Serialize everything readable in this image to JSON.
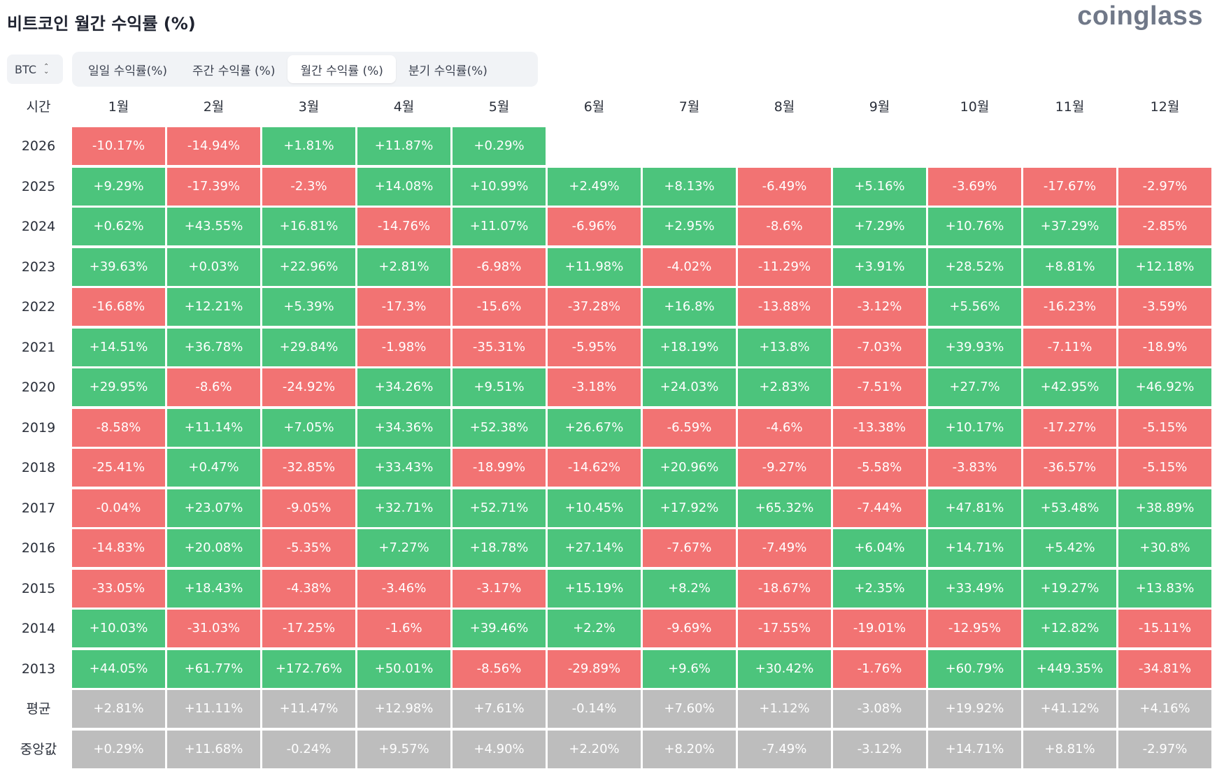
{
  "title": "비트코인 월간 수익률 (%)",
  "brand": "coinglass",
  "asset_select": {
    "value": "BTC",
    "icon": "chevron-updown-icon"
  },
  "tabs": [
    {
      "label": "일일 수익률(%)",
      "active": false
    },
    {
      "label": "주간 수익률 (%)",
      "active": false
    },
    {
      "label": "월간 수익률 (%)",
      "active": true
    },
    {
      "label": "분기 수익률(%)",
      "active": false
    }
  ],
  "table": {
    "corner_label": "시간",
    "months": [
      "1월",
      "2월",
      "3월",
      "4월",
      "5월",
      "6월",
      "7월",
      "8월",
      "9월",
      "10월",
      "11월",
      "12월"
    ],
    "rows": [
      {
        "label": "2026",
        "values": [
          "-10.17%",
          "-14.94%",
          "+1.81%",
          "+11.87%",
          "+0.29%",
          "",
          "",
          "",
          "",
          "",
          "",
          ""
        ]
      },
      {
        "label": "2025",
        "values": [
          "+9.29%",
          "-17.39%",
          "-2.3%",
          "+14.08%",
          "+10.99%",
          "+2.49%",
          "+8.13%",
          "-6.49%",
          "+5.16%",
          "-3.69%",
          "-17.67%",
          "-2.97%"
        ]
      },
      {
        "label": "2024",
        "values": [
          "+0.62%",
          "+43.55%",
          "+16.81%",
          "-14.76%",
          "+11.07%",
          "-6.96%",
          "+2.95%",
          "-8.6%",
          "+7.29%",
          "+10.76%",
          "+37.29%",
          "-2.85%"
        ]
      },
      {
        "label": "2023",
        "values": [
          "+39.63%",
          "+0.03%",
          "+22.96%",
          "+2.81%",
          "-6.98%",
          "+11.98%",
          "-4.02%",
          "-11.29%",
          "+3.91%",
          "+28.52%",
          "+8.81%",
          "+12.18%"
        ]
      },
      {
        "label": "2022",
        "values": [
          "-16.68%",
          "+12.21%",
          "+5.39%",
          "-17.3%",
          "-15.6%",
          "-37.28%",
          "+16.8%",
          "-13.88%",
          "-3.12%",
          "+5.56%",
          "-16.23%",
          "-3.59%"
        ]
      },
      {
        "label": "2021",
        "values": [
          "+14.51%",
          "+36.78%",
          "+29.84%",
          "-1.98%",
          "-35.31%",
          "-5.95%",
          "+18.19%",
          "+13.8%",
          "-7.03%",
          "+39.93%",
          "-7.11%",
          "-18.9%"
        ]
      },
      {
        "label": "2020",
        "values": [
          "+29.95%",
          "-8.6%",
          "-24.92%",
          "+34.26%",
          "+9.51%",
          "-3.18%",
          "+24.03%",
          "+2.83%",
          "-7.51%",
          "+27.7%",
          "+42.95%",
          "+46.92%"
        ]
      },
      {
        "label": "2019",
        "values": [
          "-8.58%",
          "+11.14%",
          "+7.05%",
          "+34.36%",
          "+52.38%",
          "+26.67%",
          "-6.59%",
          "-4.6%",
          "-13.38%",
          "+10.17%",
          "-17.27%",
          "-5.15%"
        ]
      },
      {
        "label": "2018",
        "values": [
          "-25.41%",
          "+0.47%",
          "-32.85%",
          "+33.43%",
          "-18.99%",
          "-14.62%",
          "+20.96%",
          "-9.27%",
          "-5.58%",
          "-3.83%",
          "-36.57%",
          "-5.15%"
        ]
      },
      {
        "label": "2017",
        "values": [
          "-0.04%",
          "+23.07%",
          "-9.05%",
          "+32.71%",
          "+52.71%",
          "+10.45%",
          "+17.92%",
          "+65.32%",
          "-7.44%",
          "+47.81%",
          "+53.48%",
          "+38.89%"
        ]
      },
      {
        "label": "2016",
        "values": [
          "-14.83%",
          "+20.08%",
          "-5.35%",
          "+7.27%",
          "+18.78%",
          "+27.14%",
          "-7.67%",
          "-7.49%",
          "+6.04%",
          "+14.71%",
          "+5.42%",
          "+30.8%"
        ]
      },
      {
        "label": "2015",
        "values": [
          "-33.05%",
          "+18.43%",
          "-4.38%",
          "-3.46%",
          "-3.17%",
          "+15.19%",
          "+8.2%",
          "-18.67%",
          "+2.35%",
          "+33.49%",
          "+19.27%",
          "+13.83%"
        ]
      },
      {
        "label": "2014",
        "values": [
          "+10.03%",
          "-31.03%",
          "-17.25%",
          "-1.6%",
          "+39.46%",
          "+2.2%",
          "-9.69%",
          "-17.55%",
          "-19.01%",
          "-12.95%",
          "+12.82%",
          "-15.11%"
        ]
      },
      {
        "label": "2013",
        "values": [
          "+44.05%",
          "+61.77%",
          "+172.76%",
          "+50.01%",
          "-8.56%",
          "-29.89%",
          "+9.6%",
          "+30.42%",
          "-1.76%",
          "+60.79%",
          "+449.35%",
          "-34.81%"
        ]
      }
    ],
    "summary_rows": [
      {
        "label": "평균",
        "values": [
          "+2.81%",
          "+11.11%",
          "+11.47%",
          "+12.98%",
          "+7.61%",
          "-0.14%",
          "+7.60%",
          "+1.12%",
          "-3.08%",
          "+19.92%",
          "+41.12%",
          "+4.16%"
        ]
      },
      {
        "label": "중앙값",
        "values": [
          "+0.29%",
          "+11.68%",
          "-0.24%",
          "+9.57%",
          "+4.90%",
          "+2.20%",
          "+8.20%",
          "-7.49%",
          "-3.12%",
          "+14.71%",
          "+8.81%",
          "-2.97%"
        ]
      }
    ]
  },
  "colors": {
    "positive": "#4cc47c",
    "negative": "#f27373",
    "summary": "#bdbdbd"
  }
}
